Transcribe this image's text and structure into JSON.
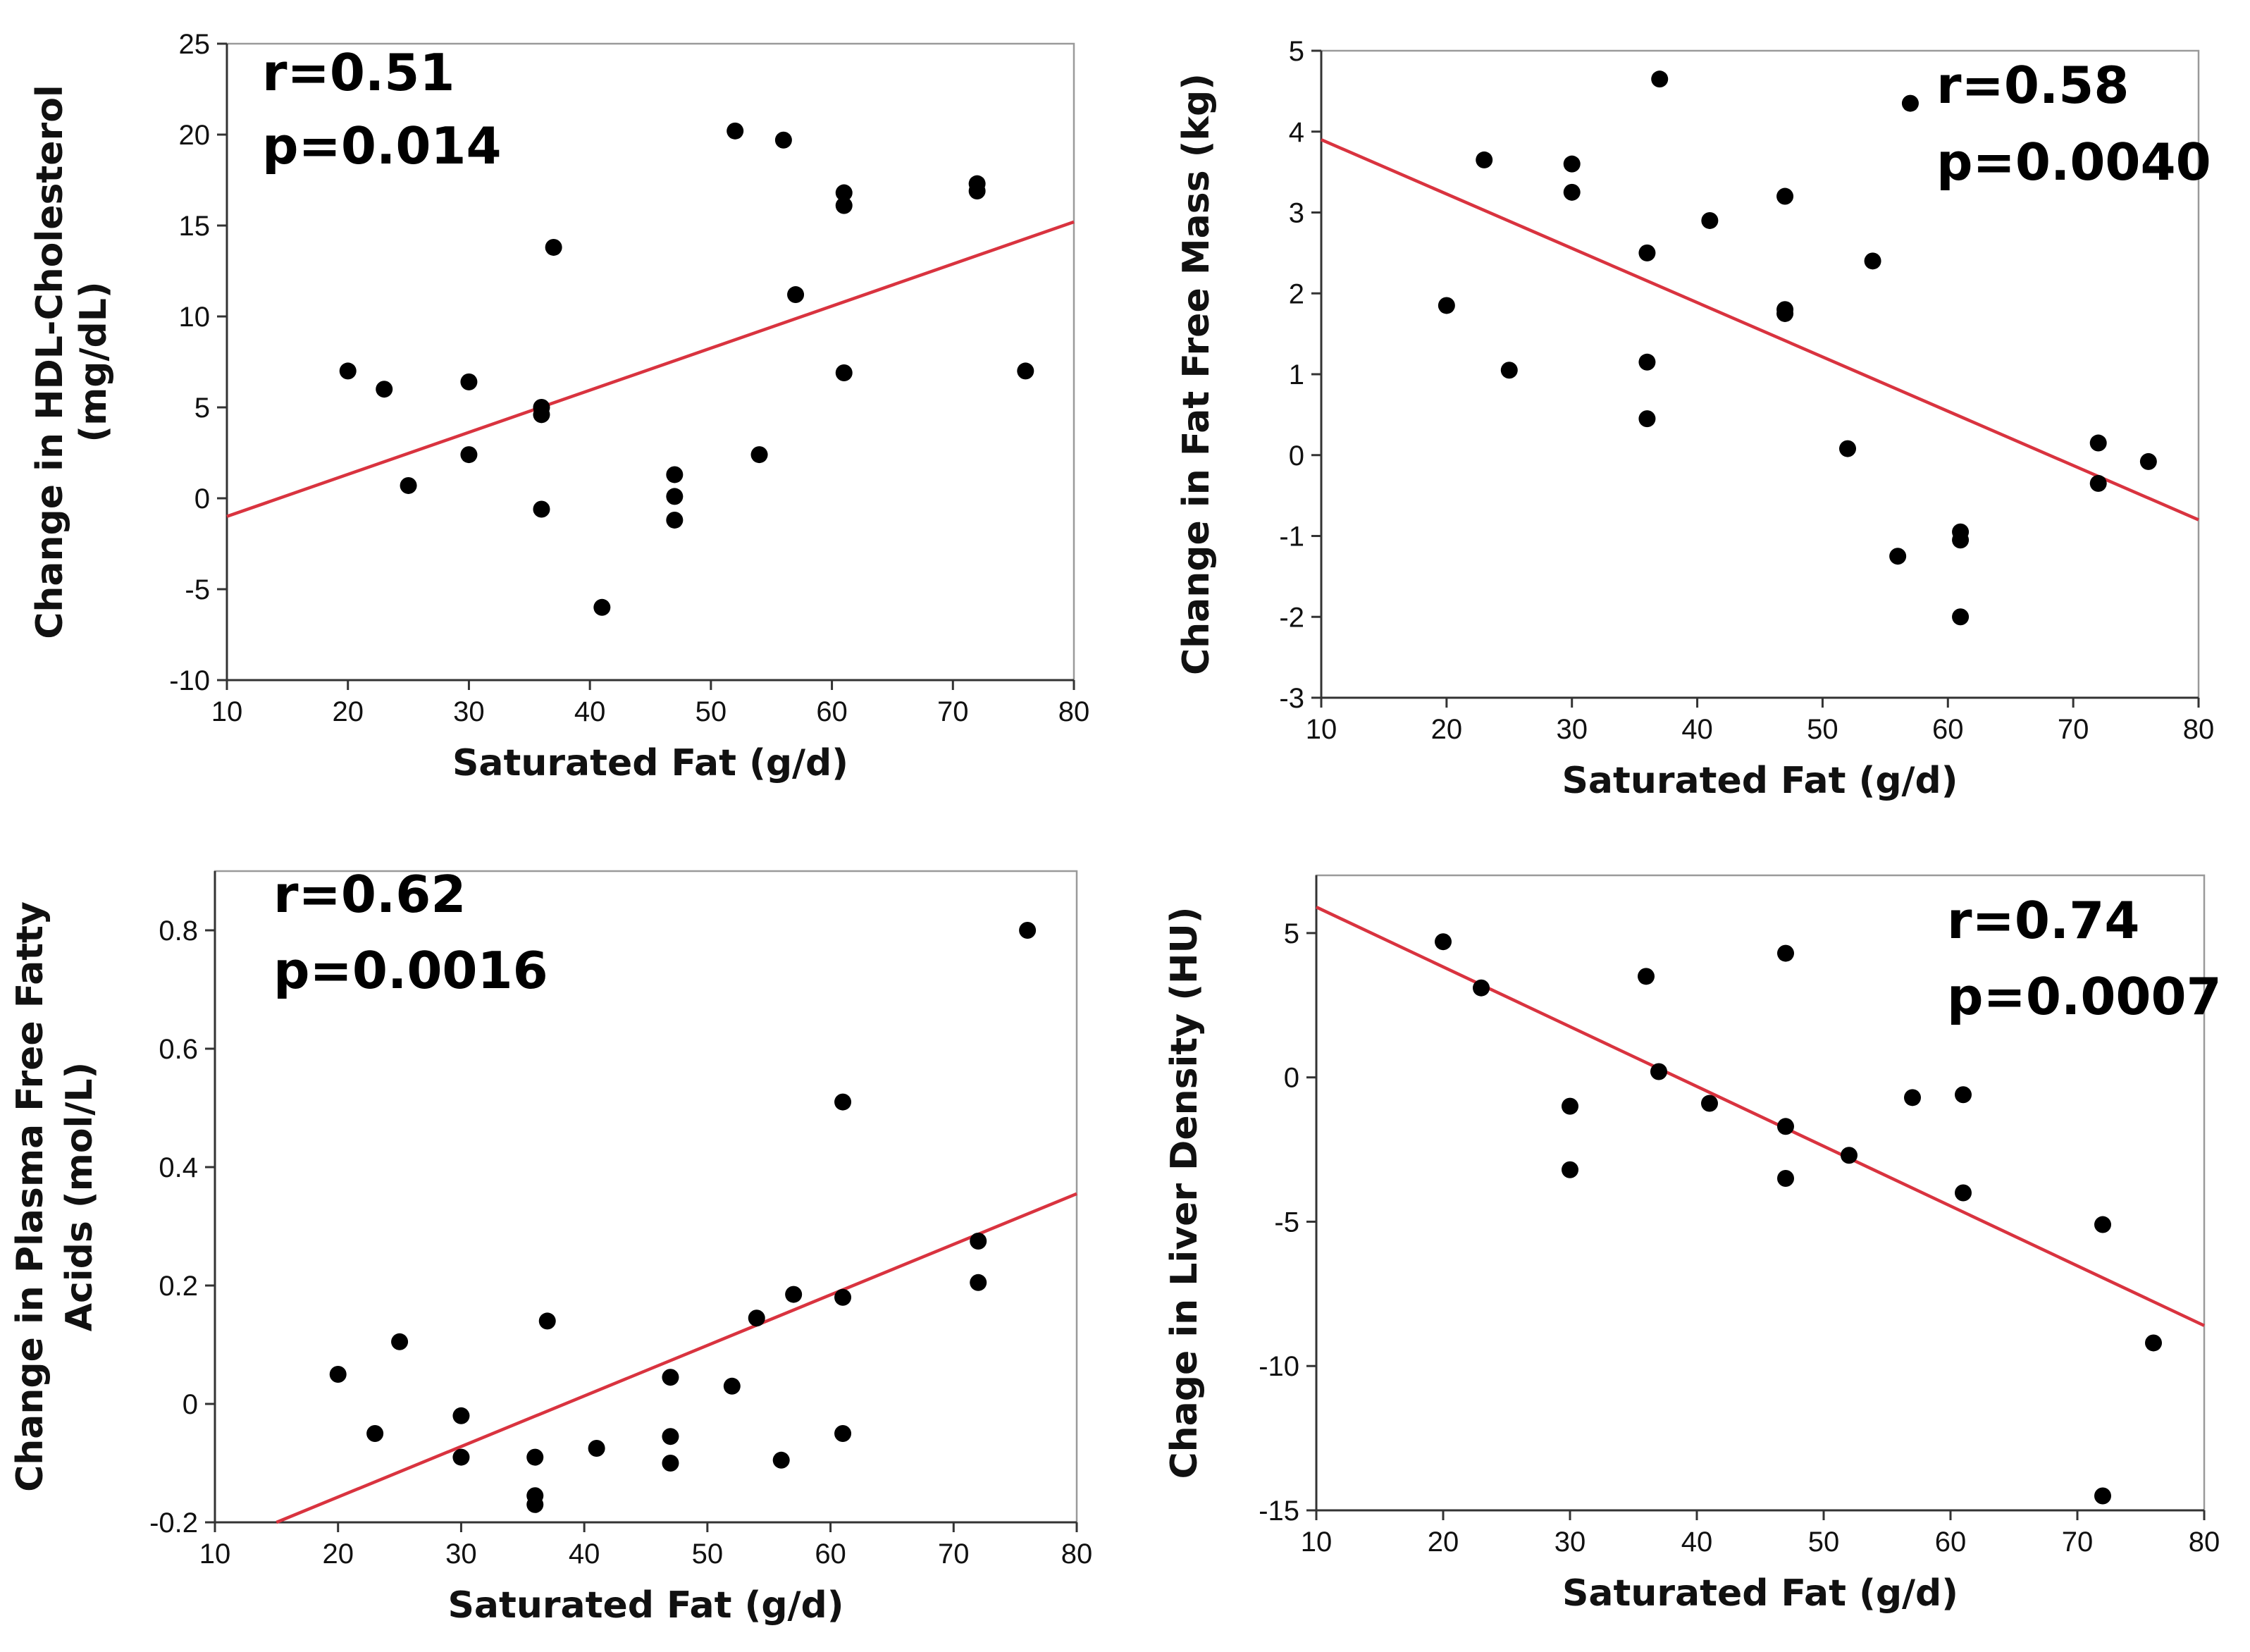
{
  "chart_data": [
    {
      "type": "scatter",
      "title": "",
      "xlabel": "Saturated Fat (g/d)",
      "ylabel": [
        "Change in HDL-Cholesterol",
        "(mg/dL)"
      ],
      "xlim": [
        10,
        80
      ],
      "ylim": [
        -10,
        25
      ],
      "xticks": [
        "10",
        "20",
        "30",
        "40",
        "50",
        "60",
        "70",
        "80"
      ],
      "yticks": [
        "-10",
        "-5",
        "0",
        "5",
        "10",
        "15",
        "20",
        "25"
      ],
      "annotations": [
        "r=0.51",
        "p=0.014"
      ],
      "annotation_position": "top-left",
      "fit_line": {
        "x": [
          10,
          80
        ],
        "y": [
          -1.0,
          15.2
        ]
      },
      "points": [
        {
          "x": 20,
          "y": 7.0
        },
        {
          "x": 23,
          "y": 6.0
        },
        {
          "x": 25,
          "y": 0.7
        },
        {
          "x": 30,
          "y": 6.4
        },
        {
          "x": 30,
          "y": 2.4
        },
        {
          "x": 36,
          "y": 5.0
        },
        {
          "x": 36,
          "y": 4.6
        },
        {
          "x": 36,
          "y": -0.6
        },
        {
          "x": 37,
          "y": 13.8
        },
        {
          "x": 41,
          "y": -6.0
        },
        {
          "x": 47,
          "y": 1.3
        },
        {
          "x": 47,
          "y": 0.1
        },
        {
          "x": 47,
          "y": -1.2
        },
        {
          "x": 52,
          "y": 20.2
        },
        {
          "x": 54,
          "y": 2.4
        },
        {
          "x": 56,
          "y": 19.7
        },
        {
          "x": 57,
          "y": 11.2
        },
        {
          "x": 61,
          "y": 16.8
        },
        {
          "x": 61,
          "y": 16.1
        },
        {
          "x": 61,
          "y": 6.9
        },
        {
          "x": 72,
          "y": 17.3
        },
        {
          "x": 72,
          "y": 16.9
        },
        {
          "x": 76,
          "y": 7.0
        }
      ]
    },
    {
      "type": "scatter",
      "title": "",
      "xlabel": "Saturated Fat (g/d)",
      "ylabel": [
        "Change in Fat Free Mass (kg)"
      ],
      "xlim": [
        10,
        80
      ],
      "ylim": [
        -3,
        5
      ],
      "xticks": [
        "10",
        "20",
        "30",
        "40",
        "50",
        "60",
        "70",
        "80"
      ],
      "yticks": [
        "-3",
        "-2",
        "-1",
        "0",
        "1",
        "2",
        "3",
        "4",
        "5"
      ],
      "annotations": [
        "r=0.58",
        "p=0.0040"
      ],
      "annotation_position": "top-right",
      "fit_line": {
        "x": [
          10,
          80
        ],
        "y": [
          3.9,
          -0.8
        ]
      },
      "points": [
        {
          "x": 20,
          "y": 1.85
        },
        {
          "x": 23,
          "y": 3.65
        },
        {
          "x": 25,
          "y": 1.05
        },
        {
          "x": 30,
          "y": 3.6
        },
        {
          "x": 30,
          "y": 3.25
        },
        {
          "x": 36,
          "y": 2.5
        },
        {
          "x": 36,
          "y": 1.15
        },
        {
          "x": 36,
          "y": 0.45
        },
        {
          "x": 37,
          "y": 4.65
        },
        {
          "x": 41,
          "y": 2.9
        },
        {
          "x": 47,
          "y": 3.2
        },
        {
          "x": 47,
          "y": 1.8
        },
        {
          "x": 47,
          "y": 1.75
        },
        {
          "x": 52,
          "y": 0.08
        },
        {
          "x": 54,
          "y": 2.4
        },
        {
          "x": 56,
          "y": -1.25
        },
        {
          "x": 57,
          "y": 4.35
        },
        {
          "x": 61,
          "y": -0.95
        },
        {
          "x": 61,
          "y": -1.05
        },
        {
          "x": 61,
          "y": -2.0
        },
        {
          "x": 72,
          "y": 0.15
        },
        {
          "x": 72,
          "y": -0.35
        },
        {
          "x": 76,
          "y": -0.08
        }
      ]
    },
    {
      "type": "scatter",
      "title": "",
      "xlabel": "Saturated Fat (g/d)",
      "ylabel": [
        "Change in Plasma Free Fatty",
        "Acids (mol/L)"
      ],
      "xlim": [
        10,
        80
      ],
      "ylim": [
        -0.2,
        0.9
      ],
      "xticks": [
        "10",
        "20",
        "30",
        "40",
        "50",
        "60",
        "70",
        "80"
      ],
      "yticks": [
        "-0.2",
        "0",
        "0.2",
        "0.4",
        "0.6",
        "0.8"
      ],
      "annotations": [
        "r=0.62",
        "p=0.0016"
      ],
      "annotation_position": "top-left",
      "fit_line": {
        "x": [
          15,
          80
        ],
        "y": [
          -0.2,
          0.355
        ]
      },
      "points": [
        {
          "x": 20,
          "y": 0.05
        },
        {
          "x": 23,
          "y": -0.05
        },
        {
          "x": 25,
          "y": 0.105
        },
        {
          "x": 30,
          "y": -0.02
        },
        {
          "x": 30,
          "y": -0.09
        },
        {
          "x": 36,
          "y": -0.09
        },
        {
          "x": 36,
          "y": -0.155
        },
        {
          "x": 36,
          "y": -0.17
        },
        {
          "x": 37,
          "y": 0.14
        },
        {
          "x": 41,
          "y": -0.075
        },
        {
          "x": 47,
          "y": 0.045
        },
        {
          "x": 47,
          "y": -0.055
        },
        {
          "x": 47,
          "y": -0.1
        },
        {
          "x": 52,
          "y": 0.03
        },
        {
          "x": 54,
          "y": 0.145
        },
        {
          "x": 56,
          "y": -0.095
        },
        {
          "x": 57,
          "y": 0.185
        },
        {
          "x": 61,
          "y": 0.51
        },
        {
          "x": 61,
          "y": 0.18
        },
        {
          "x": 61,
          "y": -0.05
        },
        {
          "x": 72,
          "y": 0.275
        },
        {
          "x": 72,
          "y": 0.205
        },
        {
          "x": 76,
          "y": 0.8
        }
      ]
    },
    {
      "type": "scatter",
      "title": "",
      "xlabel": "Saturated Fat (g/d)",
      "ylabel": [
        "Chage in Liver Density (HU)"
      ],
      "xlim": [
        10,
        80
      ],
      "ylim": [
        -15,
        7
      ],
      "xticks": [
        "10",
        "20",
        "30",
        "40",
        "50",
        "60",
        "70",
        "80"
      ],
      "yticks": [
        "-15",
        "-10",
        "-5",
        "0",
        "5"
      ],
      "annotations": [
        "r=0.74",
        "p=0.0007"
      ],
      "annotation_position": "top-right",
      "fit_line": {
        "x": [
          10,
          80
        ],
        "y": [
          5.9,
          -8.6
        ]
      },
      "points": [
        {
          "x": 20,
          "y": 4.7
        },
        {
          "x": 23,
          "y": 3.1
        },
        {
          "x": 30,
          "y": -1.0
        },
        {
          "x": 30,
          "y": -3.2
        },
        {
          "x": 36,
          "y": 3.5
        },
        {
          "x": 37,
          "y": 0.2
        },
        {
          "x": 41,
          "y": -0.9
        },
        {
          "x": 47,
          "y": 4.3
        },
        {
          "x": 47,
          "y": -1.7
        },
        {
          "x": 47,
          "y": -3.5
        },
        {
          "x": 52,
          "y": -2.7
        },
        {
          "x": 57,
          "y": -0.7
        },
        {
          "x": 61,
          "y": -0.6
        },
        {
          "x": 61,
          "y": -4.0
        },
        {
          "x": 72,
          "y": -5.1
        },
        {
          "x": 72,
          "y": -14.5
        },
        {
          "x": 76,
          "y": -9.2
        }
      ]
    }
  ]
}
